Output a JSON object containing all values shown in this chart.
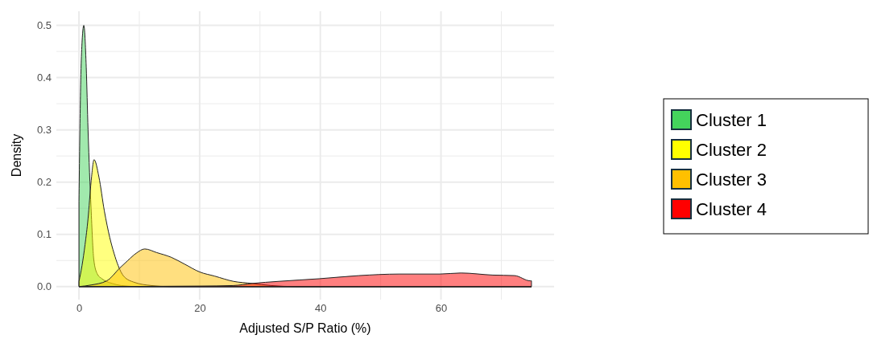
{
  "chart_data": {
    "type": "area",
    "xlabel": "Adjusted S/P Ratio (%)",
    "ylabel": "Density",
    "xlim": [
      -3.75,
      78.75
    ],
    "ylim": [
      -0.025,
      0.527
    ],
    "xticks": [
      0,
      {
        "value": 10,
        "label": null
      },
      20,
      {
        "value": 30,
        "label": null
      },
      40,
      {
        "value": 50,
        "label": null
      },
      60,
      {
        "value": 70,
        "label": null
      }
    ],
    "yticks": [
      {
        "value": 0,
        "label": "0.0"
      },
      {
        "value": 0.05,
        "label": null
      },
      0.1,
      {
        "value": 0.15,
        "label": null
      },
      0.2,
      {
        "value": 0.25,
        "label": null
      },
      0.3,
      {
        "value": 0.35,
        "label": null
      },
      0.4,
      {
        "value": 0.45,
        "label": null
      },
      0.5
    ],
    "grid": true,
    "legend": "right",
    "series": [
      {
        "name": "Cluster 1",
        "color": "#44d35c",
        "x": [
          0,
          0.2,
          0.4,
          0.8,
          1.2,
          1.5,
          2.0,
          2.45,
          3.0,
          3.8,
          4.5,
          5.5,
          7,
          10,
          75
        ],
        "values": [
          0.163,
          0.34,
          0.44,
          0.5,
          0.42,
          0.3,
          0.15,
          0.052,
          0.025,
          0.015,
          0.01,
          0.006,
          0.002,
          0,
          0
        ]
      },
      {
        "name": "Cluster 2",
        "color": "#ffff00",
        "x": [
          0,
          0.5,
          1.0,
          1.5,
          2.0,
          2.5,
          3.3,
          4.2,
          5.1,
          5.8,
          6.5,
          7.4,
          9.2,
          12,
          15,
          75
        ],
        "values": [
          0.01,
          0.04,
          0.08,
          0.13,
          0.2,
          0.243,
          0.21,
          0.145,
          0.094,
          0.064,
          0.04,
          0.02,
          0.008,
          0.002,
          0,
          0
        ]
      },
      {
        "name": "Cluster 3",
        "color": "#ffc000",
        "x": [
          0,
          2,
          4.6,
          6.8,
          8.1,
          9.5,
          10.9,
          12.9,
          15.3,
          17.5,
          20,
          22.5,
          25.6,
          28.7,
          31.8,
          36,
          75
        ],
        "values": [
          0,
          0.003,
          0.011,
          0.036,
          0.05,
          0.064,
          0.072,
          0.065,
          0.056,
          0.043,
          0.028,
          0.02,
          0.01,
          0.006,
          0.002,
          0,
          0
        ]
      },
      {
        "name": "Cluster 4",
        "color": "#ff0000",
        "x": [
          0,
          20,
          25.6,
          28.7,
          33.1,
          39.8,
          46.4,
          53.1,
          59.8,
          63.3,
          68.6,
          72.2,
          74.8,
          75
        ],
        "values": [
          0,
          0.001,
          0.002,
          0.006,
          0.01,
          0.015,
          0.021,
          0.024,
          0.024,
          0.026,
          0.022,
          0.021,
          0.011,
          0.011
        ]
      }
    ]
  }
}
